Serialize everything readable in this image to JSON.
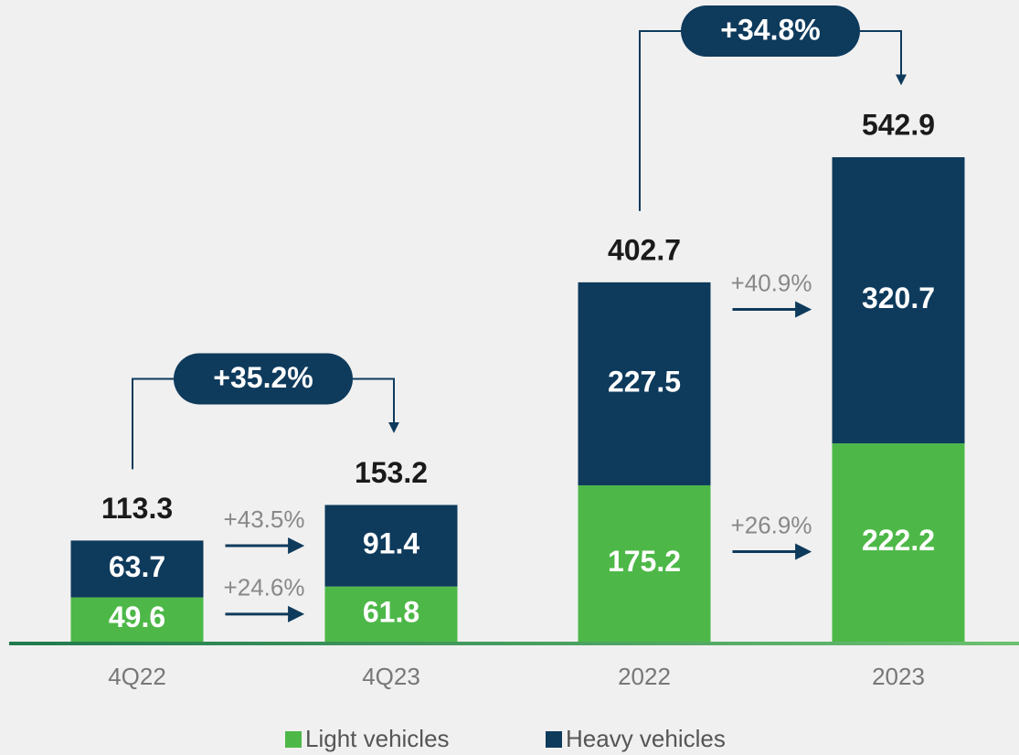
{
  "chart_data": {
    "type": "stacked_bar",
    "categories": [
      "4Q22",
      "4Q23",
      "2022",
      "2023"
    ],
    "series": [
      {
        "name": "Light vehicles",
        "color": "#4db848",
        "values": [
          49.6,
          61.8,
          175.2,
          222.2
        ],
        "growth": [
          "+24.6%",
          "+26.9%"
        ]
      },
      {
        "name": "Heavy vehicles",
        "color": "#0e3a5c",
        "values": [
          63.7,
          91.4,
          227.5,
          320.7
        ],
        "growth": [
          "+43.5%",
          "+40.9%"
        ]
      }
    ],
    "totals": [
      113.3,
      153.2,
      402.7,
      542.9
    ],
    "total_growth": [
      "+35.2%",
      "+34.8%"
    ]
  }
}
